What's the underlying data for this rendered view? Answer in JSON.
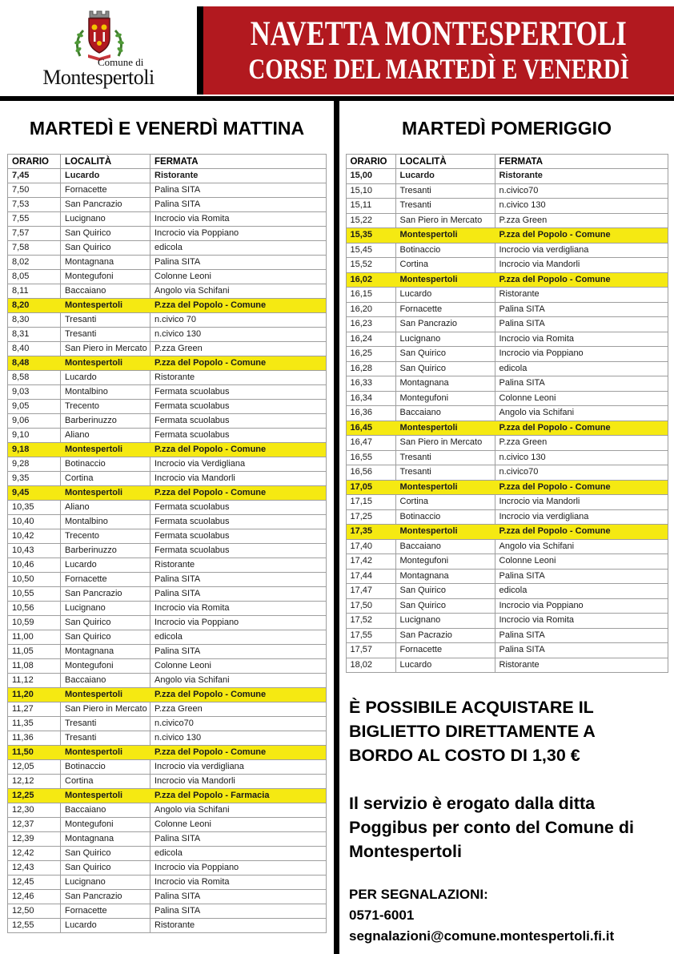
{
  "colors": {
    "banner_red": "#b2191f",
    "highlight_yellow": "#f5e912",
    "grid_gray": "#9e9e9e"
  },
  "header": {
    "logo": {
      "line1": "Comune di",
      "line2": "Montespertoli"
    },
    "banner": {
      "title_line1": "NAVETTA MONTESPERTOLI",
      "title_line2": "CORSE DEL MARTEDÌ E VENERDÌ"
    }
  },
  "morning": {
    "title": "MARTEDÌ E VENERDÌ MATTINA",
    "columns": [
      "ORARIO",
      "LOCALITÀ",
      "FERMATA"
    ],
    "rows": [
      {
        "time": "7,45",
        "place": "Lucardo",
        "stop": "Ristorante",
        "bold": true
      },
      {
        "time": "7,50",
        "place": "Fornacette",
        "stop": "Palina SITA"
      },
      {
        "time": "7,53",
        "place": "San Pancrazio",
        "stop": "Palina SITA"
      },
      {
        "time": "7,55",
        "place": "Lucignano",
        "stop": "Incrocio via Romita"
      },
      {
        "time": "7,57",
        "place": "San Quirico",
        "stop": "Incrocio via Poppiano"
      },
      {
        "time": "7,58",
        "place": "San Quirico",
        "stop": "edicola"
      },
      {
        "time": "8,02",
        "place": "Montagnana",
        "stop": "Palina SITA"
      },
      {
        "time": "8,05",
        "place": "Montegufoni",
        "stop": "Colonne Leoni"
      },
      {
        "time": "8,11",
        "place": "Baccaiano",
        "stop": "Angolo via Schifani"
      },
      {
        "time": "8,20",
        "place": "Montespertoli",
        "stop": "P.zza del Popolo - Comune",
        "highlight": true
      },
      {
        "time": "8,30",
        "place": "Tresanti",
        "stop": "n.civico 70"
      },
      {
        "time": "8,31",
        "place": "Tresanti",
        "stop": "n.civico 130"
      },
      {
        "time": "8,40",
        "place": "San Piero in Mercato",
        "stop": "P.zza Green"
      },
      {
        "time": "8,48",
        "place": "Montespertoli",
        "stop": "P.zza del Popolo - Comune",
        "highlight": true
      },
      {
        "time": "8,58",
        "place": "Lucardo",
        "stop": "Ristorante"
      },
      {
        "time": "9,03",
        "place": "Montalbino",
        "stop": "Fermata scuolabus"
      },
      {
        "time": "9,05",
        "place": "Trecento",
        "stop": "Fermata scuolabus"
      },
      {
        "time": "9,06",
        "place": "Barberinuzzo",
        "stop": "Fermata scuolabus"
      },
      {
        "time": "9,10",
        "place": "Aliano",
        "stop": "Fermata scuolabus"
      },
      {
        "time": "9,18",
        "place": "Montespertoli",
        "stop": "P.zza del Popolo - Comune",
        "highlight": true
      },
      {
        "time": "9,28",
        "place": "Botinaccio",
        "stop": "Incrocio via Verdigliana"
      },
      {
        "time": "9,35",
        "place": "Cortina",
        "stop": "Incrocio via Mandorli"
      },
      {
        "time": "9,45",
        "place": "Montespertoli",
        "stop": "P.zza del Popolo - Comune",
        "highlight": true
      },
      {
        "time": "10,35",
        "place": "Aliano",
        "stop": "Fermata scuolabus"
      },
      {
        "time": "10,40",
        "place": "Montalbino",
        "stop": "Fermata scuolabus"
      },
      {
        "time": "10,42",
        "place": "Trecento",
        "stop": "Fermata scuolabus"
      },
      {
        "time": "10,43",
        "place": "Barberinuzzo",
        "stop": "Fermata scuolabus"
      },
      {
        "time": "10,46",
        "place": "Lucardo",
        "stop": "Ristorante"
      },
      {
        "time": "10,50",
        "place": "Fornacette",
        "stop": "Palina SITA"
      },
      {
        "time": "10,55",
        "place": "San Pancrazio",
        "stop": "Palina SITA"
      },
      {
        "time": "10,56",
        "place": "Lucignano",
        "stop": "Incrocio via Romita"
      },
      {
        "time": "10,59",
        "place": "San Quirico",
        "stop": "Incrocio via Poppiano"
      },
      {
        "time": "11,00",
        "place": "San Quirico",
        "stop": "edicola"
      },
      {
        "time": "11,05",
        "place": "Montagnana",
        "stop": "Palina SITA"
      },
      {
        "time": "11,08",
        "place": "Montegufoni",
        "stop": "Colonne Leoni"
      },
      {
        "time": "11,12",
        "place": "Baccaiano",
        "stop": "Angolo via Schifani"
      },
      {
        "time": "11,20",
        "place": "Montespertoli",
        "stop": "P.zza del Popolo - Comune",
        "highlight": true
      },
      {
        "time": "11,27",
        "place": "San Piero in Mercato",
        "stop": "P.zza Green"
      },
      {
        "time": "11,35",
        "place": "Tresanti",
        "stop": "n.civico70"
      },
      {
        "time": "11,36",
        "place": "Tresanti",
        "stop": "n.civico 130"
      },
      {
        "time": "11,50",
        "place": "Montespertoli",
        "stop": "P.zza del Popolo - Comune",
        "highlight": true
      },
      {
        "time": "12,05",
        "place": "Botinaccio",
        "stop": "Incrocio via verdigliana"
      },
      {
        "time": "12,12",
        "place": "Cortina",
        "stop": "Incrocio via Mandorli"
      },
      {
        "time": "12,25",
        "place": "Montespertoli",
        "stop": "P.zza del Popolo - Farmacia",
        "highlight": true
      },
      {
        "time": "12,30",
        "place": "Baccaiano",
        "stop": "Angolo via Schifani"
      },
      {
        "time": "12,37",
        "place": "Montegufoni",
        "stop": "Colonne Leoni"
      },
      {
        "time": "12,39",
        "place": "Montagnana",
        "stop": "Palina SITA"
      },
      {
        "time": "12,42",
        "place": "San Quirico",
        "stop": "edicola"
      },
      {
        "time": "12,43",
        "place": "San Quirico",
        "stop": "Incrocio via Poppiano"
      },
      {
        "time": "12,45",
        "place": "Lucignano",
        "stop": "Incrocio via Romita"
      },
      {
        "time": "12,46",
        "place": "San Pancrazio",
        "stop": "Palina SITA"
      },
      {
        "time": "12,50",
        "place": "Fornacette",
        "stop": "Palina SITA"
      },
      {
        "time": "12,55",
        "place": "Lucardo",
        "stop": "Ristorante"
      }
    ]
  },
  "afternoon": {
    "title": "MARTEDÌ POMERIGGIO",
    "columns": [
      "ORARIO",
      "LOCALITÀ",
      "FERMATA"
    ],
    "rows": [
      {
        "time": "15,00",
        "place": "Lucardo",
        "stop": "Ristorante",
        "bold": true
      },
      {
        "time": "15,10",
        "place": "Tresanti",
        "stop": "n.civico70"
      },
      {
        "time": "15,11",
        "place": "Tresanti",
        "stop": "n.civico 130"
      },
      {
        "time": "15,22",
        "place": "San Piero in Mercato",
        "stop": "P.zza Green"
      },
      {
        "time": "15,35",
        "place": "Montespertoli",
        "stop": "P.zza del Popolo - Comune",
        "highlight": true
      },
      {
        "time": "15,45",
        "place": "Botinaccio",
        "stop": "Incrocio via verdigliana"
      },
      {
        "time": "15,52",
        "place": "Cortina",
        "stop": "Incrocio via Mandorli"
      },
      {
        "time": "16,02",
        "place": "Montespertoli",
        "stop": "P.zza del Popolo - Comune",
        "highlight": true
      },
      {
        "time": "16,15",
        "place": "Lucardo",
        "stop": "Ristorante"
      },
      {
        "time": "16,20",
        "place": "Fornacette",
        "stop": "Palina SITA"
      },
      {
        "time": "16,23",
        "place": "San Pancrazio",
        "stop": "Palina SITA"
      },
      {
        "time": "16,24",
        "place": "Lucignano",
        "stop": "Incrocio via Romita"
      },
      {
        "time": "16,25",
        "place": "San Quirico",
        "stop": "Incrocio via Poppiano"
      },
      {
        "time": "16,28",
        "place": "San Quirico",
        "stop": "edicola"
      },
      {
        "time": "16,33",
        "place": "Montagnana",
        "stop": "Palina SITA"
      },
      {
        "time": "16,34",
        "place": "Montegufoni",
        "stop": "Colonne Leoni"
      },
      {
        "time": "16,36",
        "place": "Baccaiano",
        "stop": "Angolo via Schifani"
      },
      {
        "time": "16,45",
        "place": "Montespertoli",
        "stop": "P.zza del Popolo - Comune",
        "highlight": true
      },
      {
        "time": "16,47",
        "place": "San Piero in Mercato",
        "stop": "P.zza Green"
      },
      {
        "time": "16,55",
        "place": "Tresanti",
        "stop": "n.civico 130"
      },
      {
        "time": "16,56",
        "place": "Tresanti",
        "stop": "n.civico70"
      },
      {
        "time": "17,05",
        "place": "Montespertoli",
        "stop": "P.zza del Popolo - Comune",
        "highlight": true
      },
      {
        "time": "17,15",
        "place": "Cortina",
        "stop": "Incrocio via Mandorli"
      },
      {
        "time": "17,25",
        "place": "Botinaccio",
        "stop": "Incrocio via verdigliana"
      },
      {
        "time": "17,35",
        "place": "Montespertoli",
        "stop": "P.zza del Popolo - Comune",
        "highlight": true
      },
      {
        "time": "17,40",
        "place": "Baccaiano",
        "stop": "Angolo via Schifani"
      },
      {
        "time": "17,42",
        "place": "Montegufoni",
        "stop": "Colonne Leoni"
      },
      {
        "time": "17,44",
        "place": "Montagnana",
        "stop": "Palina SITA"
      },
      {
        "time": "17,47",
        "place": "San Quirico",
        "stop": "edicola"
      },
      {
        "time": "17,50",
        "place": "San Quirico",
        "stop": "Incrocio via Poppiano"
      },
      {
        "time": "17,52",
        "place": "Lucignano",
        "stop": "Incrocio via Romita"
      },
      {
        "time": "17,55",
        "place": "San Pacrazio",
        "stop": "Palina SITA"
      },
      {
        "time": "17,57",
        "place": "Fornacette",
        "stop": "Palina SITA"
      },
      {
        "time": "18,02",
        "place": "Lucardo",
        "stop": "Ristorante"
      }
    ]
  },
  "info": {
    "ticket": "È POSSIBILE ACQUISTARE IL BIGLIETTO DIRETTAMENTE A BORDO AL COSTO DI 1,30 €",
    "service": "Il servizio è erogato dalla ditta Poggibus per conto del Comune di Montespertoli",
    "reports_label": "PER SEGNALAZIONI:",
    "phone": "0571-6001",
    "email": "segnalazioni@comune.montespertoli.fi.it"
  }
}
